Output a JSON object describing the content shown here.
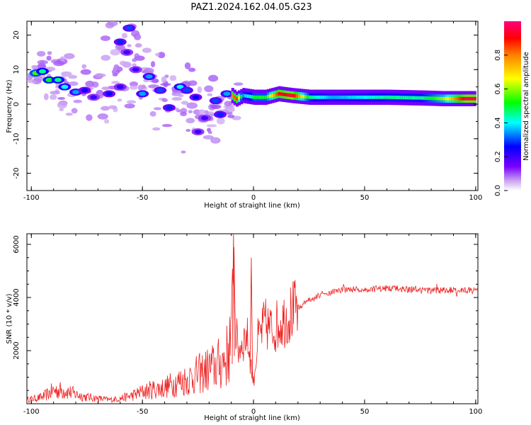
{
  "title": "PAZ1.2024.162.04.05.G23",
  "chart_data": [
    {
      "type": "heatmap",
      "xlabel": "Height of straight line (km)",
      "ylabel": "Frequency (Hz)",
      "xlim": [
        -102,
        101
      ],
      "ylim": [
        -25,
        24
      ],
      "xticks": [
        "-100",
        "-50",
        "0",
        "50",
        "100"
      ],
      "yticks": [
        "20",
        "10",
        "0",
        "-10",
        "-20"
      ],
      "colorbar": {
        "label": "Normalized spectral amplitude",
        "ticks": [
          "0.0",
          "0.2",
          "0.4",
          "0.6",
          "0.8"
        ],
        "range": [
          0,
          1
        ],
        "colormap": [
          "#ffffff",
          "#c8a0f0",
          "#7b00ff",
          "#0000ff",
          "#00ffff",
          "#00ff00",
          "#ffff00",
          "#ff8000",
          "#ff0000",
          "#ff0080"
        ]
      },
      "blobs": [
        {
          "x": -98,
          "f": 9,
          "a": 0.55
        },
        {
          "x": -95,
          "f": 9.5,
          "a": 0.45
        },
        {
          "x": -92,
          "f": 7,
          "a": 0.5
        },
        {
          "x": -88,
          "f": 7,
          "a": 0.45
        },
        {
          "x": -85,
          "f": 5,
          "a": 0.4
        },
        {
          "x": -80,
          "f": 3.5,
          "a": 0.35
        },
        {
          "x": -76,
          "f": 4,
          "a": 0.25
        },
        {
          "x": -72,
          "f": 2,
          "a": 0.2
        },
        {
          "x": -65,
          "f": 3,
          "a": 0.25
        },
        {
          "x": -60,
          "f": 5,
          "a": 0.22
        },
        {
          "x": -56,
          "f": 22,
          "a": 0.3
        },
        {
          "x": -60,
          "f": 18,
          "a": 0.28
        },
        {
          "x": -57,
          "f": 15,
          "a": 0.2
        },
        {
          "x": -53,
          "f": 10,
          "a": 0.2
        },
        {
          "x": -50,
          "f": 3,
          "a": 0.35
        },
        {
          "x": -47,
          "f": 8,
          "a": 0.35
        },
        {
          "x": -42,
          "f": 4,
          "a": 0.3
        },
        {
          "x": -38,
          "f": -1,
          "a": 0.28
        },
        {
          "x": -33,
          "f": 5,
          "a": 0.4
        },
        {
          "x": -30,
          "f": 4,
          "a": 0.3
        },
        {
          "x": -26,
          "f": 2,
          "a": 0.25
        },
        {
          "x": -25,
          "f": -8,
          "a": 0.2
        },
        {
          "x": -22,
          "f": -4,
          "a": 0.2
        },
        {
          "x": -17,
          "f": 1,
          "a": 0.3
        },
        {
          "x": -15,
          "f": -3,
          "a": 0.28
        },
        {
          "x": -12,
          "f": 3,
          "a": 0.35
        }
      ],
      "ridge": [
        {
          "x": -10,
          "f": 2.5,
          "a": 0.8
        },
        {
          "x": -8,
          "f": 1.5,
          "a": 0.85
        },
        {
          "x": -5,
          "f": 2.5,
          "a": 0.35
        },
        {
          "x": 0,
          "f": 2.0,
          "a": 0.5
        },
        {
          "x": 5,
          "f": 2.0,
          "a": 0.5
        },
        {
          "x": 11,
          "f": 3.0,
          "a": 0.9
        },
        {
          "x": 17,
          "f": 2.5,
          "a": 0.95
        },
        {
          "x": 25,
          "f": 2.0,
          "a": 0.45
        },
        {
          "x": 35,
          "f": 2.0,
          "a": 0.35
        },
        {
          "x": 50,
          "f": 2.0,
          "a": 0.4
        },
        {
          "x": 60,
          "f": 2.0,
          "a": 0.45
        },
        {
          "x": 75,
          "f": 1.8,
          "a": 0.45
        },
        {
          "x": 85,
          "f": 1.6,
          "a": 0.6
        },
        {
          "x": 95,
          "f": 1.6,
          "a": 0.95
        },
        {
          "x": 100,
          "f": 1.6,
          "a": 0.95
        }
      ]
    },
    {
      "type": "line",
      "xlabel": "Height of straight line (km)",
      "ylabel": "SNR (10 * v/v)",
      "xlim": [
        -102,
        101
      ],
      "ylim": [
        0,
        6400
      ],
      "xticks": [
        "-100",
        "-50",
        "0",
        "50",
        "100"
      ],
      "yticks": [
        "6000",
        "4000",
        "2000"
      ],
      "color": "#ee2222",
      "series": [
        {
          "x": [
            -102,
            -95,
            -90,
            -85,
            -80,
            -75,
            -70,
            -65,
            -60,
            -55,
            -50,
            -45,
            -40,
            -35,
            -30,
            -25,
            -20,
            -15,
            -12,
            -10,
            -9,
            -8,
            -7,
            -5,
            -3,
            0,
            2,
            5,
            8,
            10,
            15,
            20,
            25,
            30,
            35,
            40,
            50,
            60,
            70,
            80,
            90,
            100
          ],
          "y": [
            150,
            250,
            500,
            500,
            350,
            250,
            200,
            150,
            200,
            300,
            450,
            550,
            600,
            800,
            900,
            1100,
            1300,
            1500,
            1800,
            2500,
            6300,
            2800,
            2000,
            2300,
            2600,
            800,
            2400,
            3000,
            2800,
            2900,
            3300,
            3600,
            3900,
            4100,
            4200,
            4300,
            4300,
            4350,
            4300,
            4250,
            4300,
            4250
          ]
        }
      ]
    }
  ]
}
